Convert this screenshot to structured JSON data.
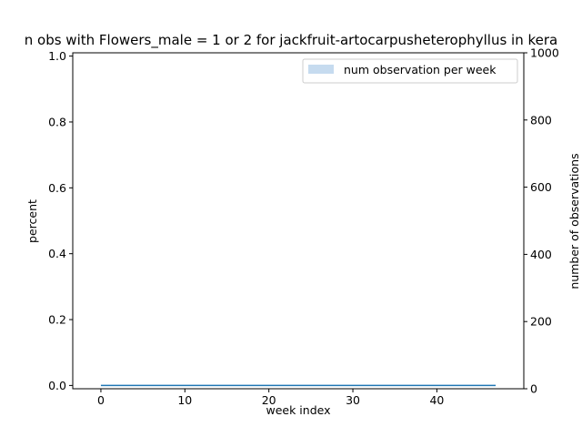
{
  "chart_data": {
    "type": "line",
    "title": "n obs with Flowers_male = 1 or 2 for jackfruit-artocarpusheterophyllus in kera",
    "xlabel": "week index",
    "ylabel_left": "percent",
    "ylabel_right": "number of observations",
    "xlim": [
      -3.35,
      50.35
    ],
    "ylim_left": [
      -0.01,
      1.01
    ],
    "ylim_right": [
      0,
      1000
    ],
    "x_ticks": [
      0,
      10,
      20,
      30,
      40
    ],
    "y_left_ticks": [
      "0.0",
      "0.2",
      "0.4",
      "0.6",
      "0.8",
      "1.0"
    ],
    "y_right_ticks": [
      "0",
      "200",
      "400",
      "600",
      "800",
      "1000"
    ],
    "legend": {
      "placement": "top-right",
      "entries": [
        "num observation per week"
      ]
    },
    "series": [
      {
        "axis": "left",
        "kind": "line",
        "color": "#1f77b4",
        "x_start": 0,
        "x_end": 47,
        "value": 0
      },
      {
        "name": "num observation per week",
        "axis": "right",
        "kind": "bar",
        "color": "#c6dbef",
        "x_start": 0,
        "x_end": 47,
        "value": 0
      }
    ]
  }
}
